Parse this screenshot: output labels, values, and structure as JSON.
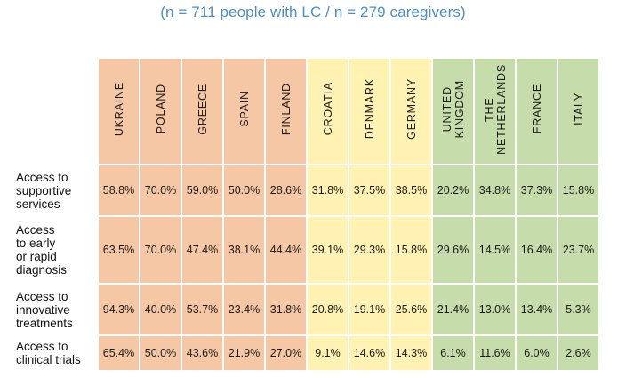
{
  "subtitle": "(n = 711 people with LC / n = 279 caregivers)",
  "chart_data": {
    "type": "heatmap",
    "columns": [
      {
        "label": "UKRAINE",
        "group": "orange"
      },
      {
        "label": "POLAND",
        "group": "orange"
      },
      {
        "label": "GREECE",
        "group": "orange"
      },
      {
        "label": "SPAIN",
        "group": "orange"
      },
      {
        "label": "FINLAND",
        "group": "orange"
      },
      {
        "label": "CROATIA",
        "group": "yellow"
      },
      {
        "label": "DENMARK",
        "group": "yellow"
      },
      {
        "label": "GERMANY",
        "group": "yellow"
      },
      {
        "label": "UNITED\nKINGDOM",
        "group": "green"
      },
      {
        "label": "THE\nNETHERLANDS",
        "group": "green"
      },
      {
        "label": "FRANCE",
        "group": "green"
      },
      {
        "label": "ITALY",
        "group": "green"
      }
    ],
    "group_colors": {
      "orange": "#f6c7a4",
      "yellow": "#fff2b3",
      "green": "#c6dcab"
    },
    "rows": [
      {
        "label": "Access to\nsupportive\nservices",
        "values": [
          "58.8%",
          "70.0%",
          "59.0%",
          "50.0%",
          "28.6%",
          "31.8%",
          "37.5%",
          "38.5%",
          "20.2%",
          "34.8%",
          "37.3%",
          "15.8%"
        ]
      },
      {
        "label": "Access\nto early\nor rapid\ndiagnosis",
        "values": [
          "63.5%",
          "70.0%",
          "47.4%",
          "38.1%",
          "44.4%",
          "39.1%",
          "29.3%",
          "15.8%",
          "29.6%",
          "14.5%",
          "16.4%",
          "23.7%"
        ]
      },
      {
        "label": "Access to\ninnovative\ntreatments",
        "values": [
          "94.3%",
          "40.0%",
          "53.7%",
          "23.4%",
          "31.8%",
          "20.8%",
          "19.1%",
          "25.6%",
          "21.4%",
          "13.0%",
          "13.4%",
          "5.3%"
        ]
      },
      {
        "label": "Access to\nclinical trials",
        "values": [
          "65.4%",
          "50.0%",
          "43.6%",
          "21.9%",
          "27.0%",
          "9.1%",
          "14.6%",
          "14.3%",
          "6.1%",
          "11.6%",
          "6.0%",
          "2.6%"
        ]
      }
    ]
  }
}
